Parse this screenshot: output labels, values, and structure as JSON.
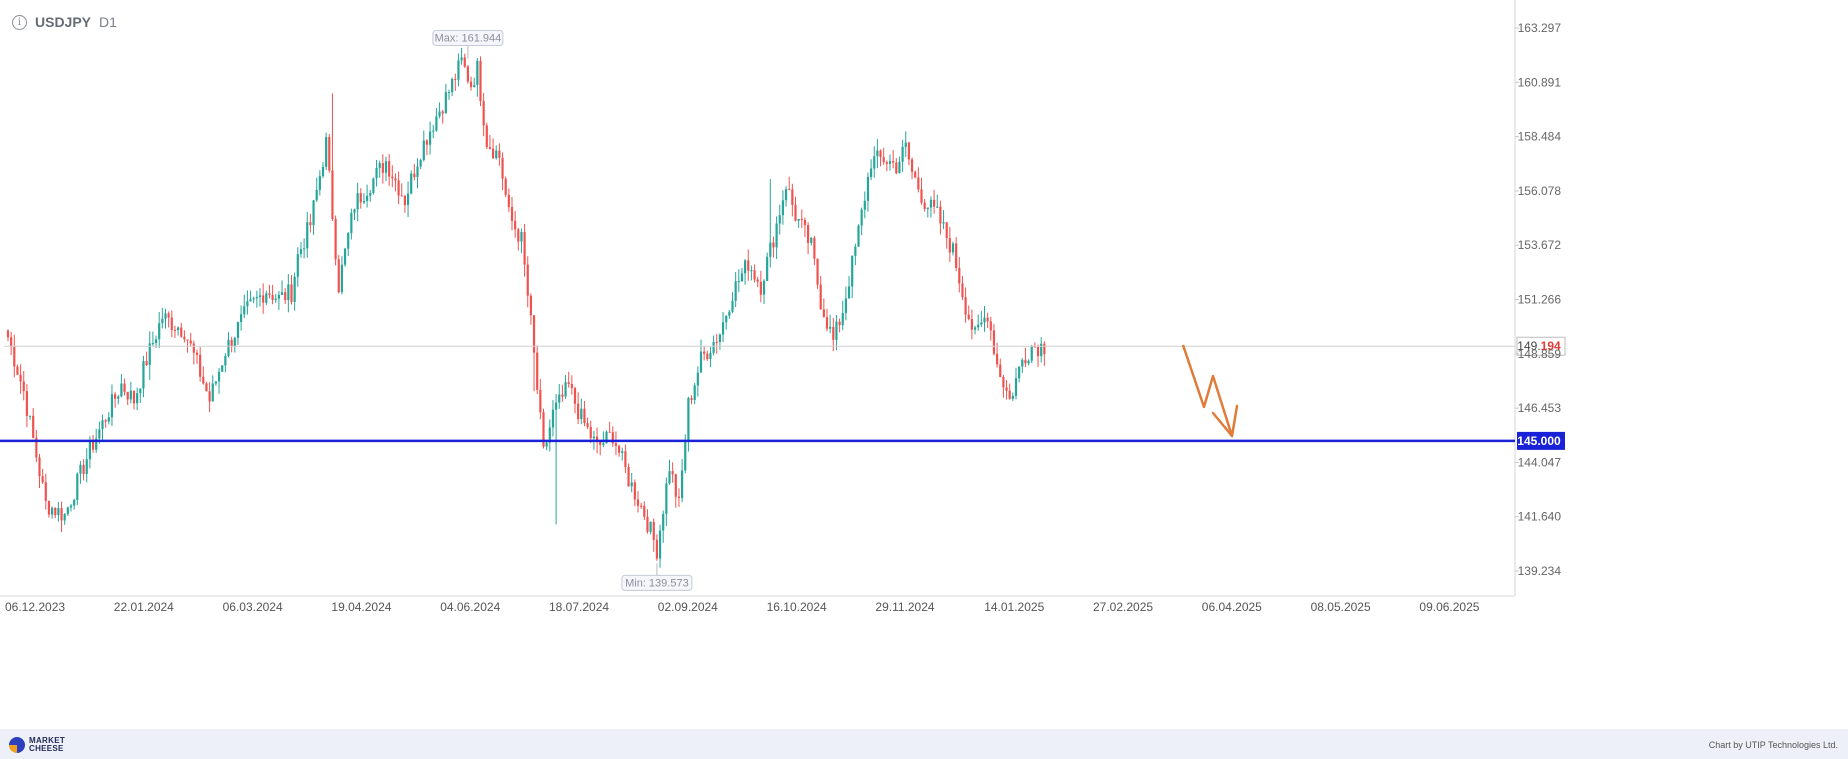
{
  "header": {
    "symbol": "USDJPY",
    "timeframe": "D1",
    "info_icon": "info-icon"
  },
  "footer": {
    "logo_line1": "MARKET",
    "logo_line2": "CHEESE",
    "credit": "Chart by UTIP Technologies Ltd."
  },
  "colors": {
    "bull": "#26a69a",
    "bear": "#ef5350",
    "level_line": "#1a22d8",
    "forecast": "#e07b39",
    "grid": "#e0e0e0"
  },
  "chart_data": {
    "type": "candlestick",
    "symbol": "USDJPY",
    "timeframe": "D1",
    "y_ticks": [
      "163.297",
      "160.891",
      "158.484",
      "156.078",
      "153.672",
      "151.266",
      "148.859",
      "146.453",
      "144.047",
      "141.640",
      "139.234"
    ],
    "ylim": [
      138.0,
      164.0
    ],
    "x_ticks": [
      "06.12.2023",
      "22.01.2024",
      "06.03.2024",
      "19.04.2024",
      "04.06.2024",
      "18.07.2024",
      "02.09.2024",
      "16.10.2024",
      "29.11.2024",
      "14.01.2025",
      "27.02.2025",
      "06.04.2025",
      "08.05.2025",
      "09.06.2025"
    ],
    "current_price": {
      "prefix": "149.",
      "suffix": "194",
      "value": 149.194
    },
    "level": {
      "label": "145.000",
      "value": 145.0
    },
    "max_label": "Max: 161.944",
    "min_label": "Min: 139.573",
    "max_value": 161.944,
    "min_value": 139.573,
    "path": [
      [
        0,
        149.6
      ],
      [
        5,
        147.2
      ],
      [
        12,
        142.2
      ],
      [
        18,
        141.7
      ],
      [
        26,
        144.6
      ],
      [
        36,
        147.5
      ],
      [
        40,
        146.8
      ],
      [
        44,
        148.6
      ],
      [
        49,
        150.5
      ],
      [
        56,
        149.9
      ],
      [
        60,
        148.4
      ],
      [
        64,
        146.8
      ],
      [
        69,
        149.0
      ],
      [
        76,
        150.8
      ],
      [
        82,
        151.7
      ],
      [
        86,
        151.3
      ],
      [
        90,
        151.6
      ],
      [
        92,
        153.2
      ],
      [
        96,
        154.6
      ],
      [
        101,
        158.2
      ],
      [
        105,
        151.9
      ],
      [
        110,
        155.5
      ],
      [
        116,
        156.6
      ],
      [
        120,
        157.4
      ],
      [
        126,
        155.7
      ],
      [
        131,
        157.9
      ],
      [
        136,
        159.4
      ],
      [
        140,
        160.5
      ],
      [
        144,
        161.8
      ],
      [
        147,
        160.8
      ],
      [
        149,
        161.5
      ],
      [
        152,
        158.3
      ],
      [
        156,
        157.6
      ],
      [
        159,
        155.0
      ],
      [
        163,
        153.9
      ],
      [
        166,
        150.2
      ],
      [
        170,
        144.4
      ],
      [
        173,
        146.2
      ],
      [
        178,
        147.4
      ],
      [
        182,
        146.0
      ],
      [
        187,
        144.7
      ],
      [
        192,
        145.3
      ],
      [
        197,
        143.3
      ],
      [
        202,
        141.8
      ],
      [
        206,
        140.2
      ],
      [
        210,
        143.9
      ],
      [
        213,
        142.1
      ],
      [
        216,
        146.6
      ],
      [
        220,
        148.6
      ],
      [
        226,
        149.8
      ],
      [
        230,
        151.6
      ],
      [
        235,
        152.9
      ],
      [
        239,
        151.9
      ],
      [
        243,
        154.0
      ],
      [
        247,
        156.4
      ],
      [
        250,
        155.0
      ],
      [
        255,
        153.6
      ],
      [
        258,
        151.2
      ],
      [
        262,
        149.4
      ],
      [
        265,
        150.8
      ],
      [
        269,
        153.5
      ],
      [
        274,
        157.4
      ],
      [
        278,
        157.5
      ],
      [
        282,
        157.2
      ],
      [
        285,
        158.0
      ],
      [
        287,
        156.9
      ],
      [
        291,
        155.6
      ],
      [
        295,
        155.0
      ],
      [
        300,
        153.4
      ],
      [
        304,
        151.0
      ],
      [
        307,
        149.6
      ],
      [
        311,
        150.7
      ],
      [
        314,
        148.4
      ],
      [
        318,
        146.8
      ],
      [
        322,
        148.6
      ],
      [
        325,
        149.2
      ]
    ]
  }
}
